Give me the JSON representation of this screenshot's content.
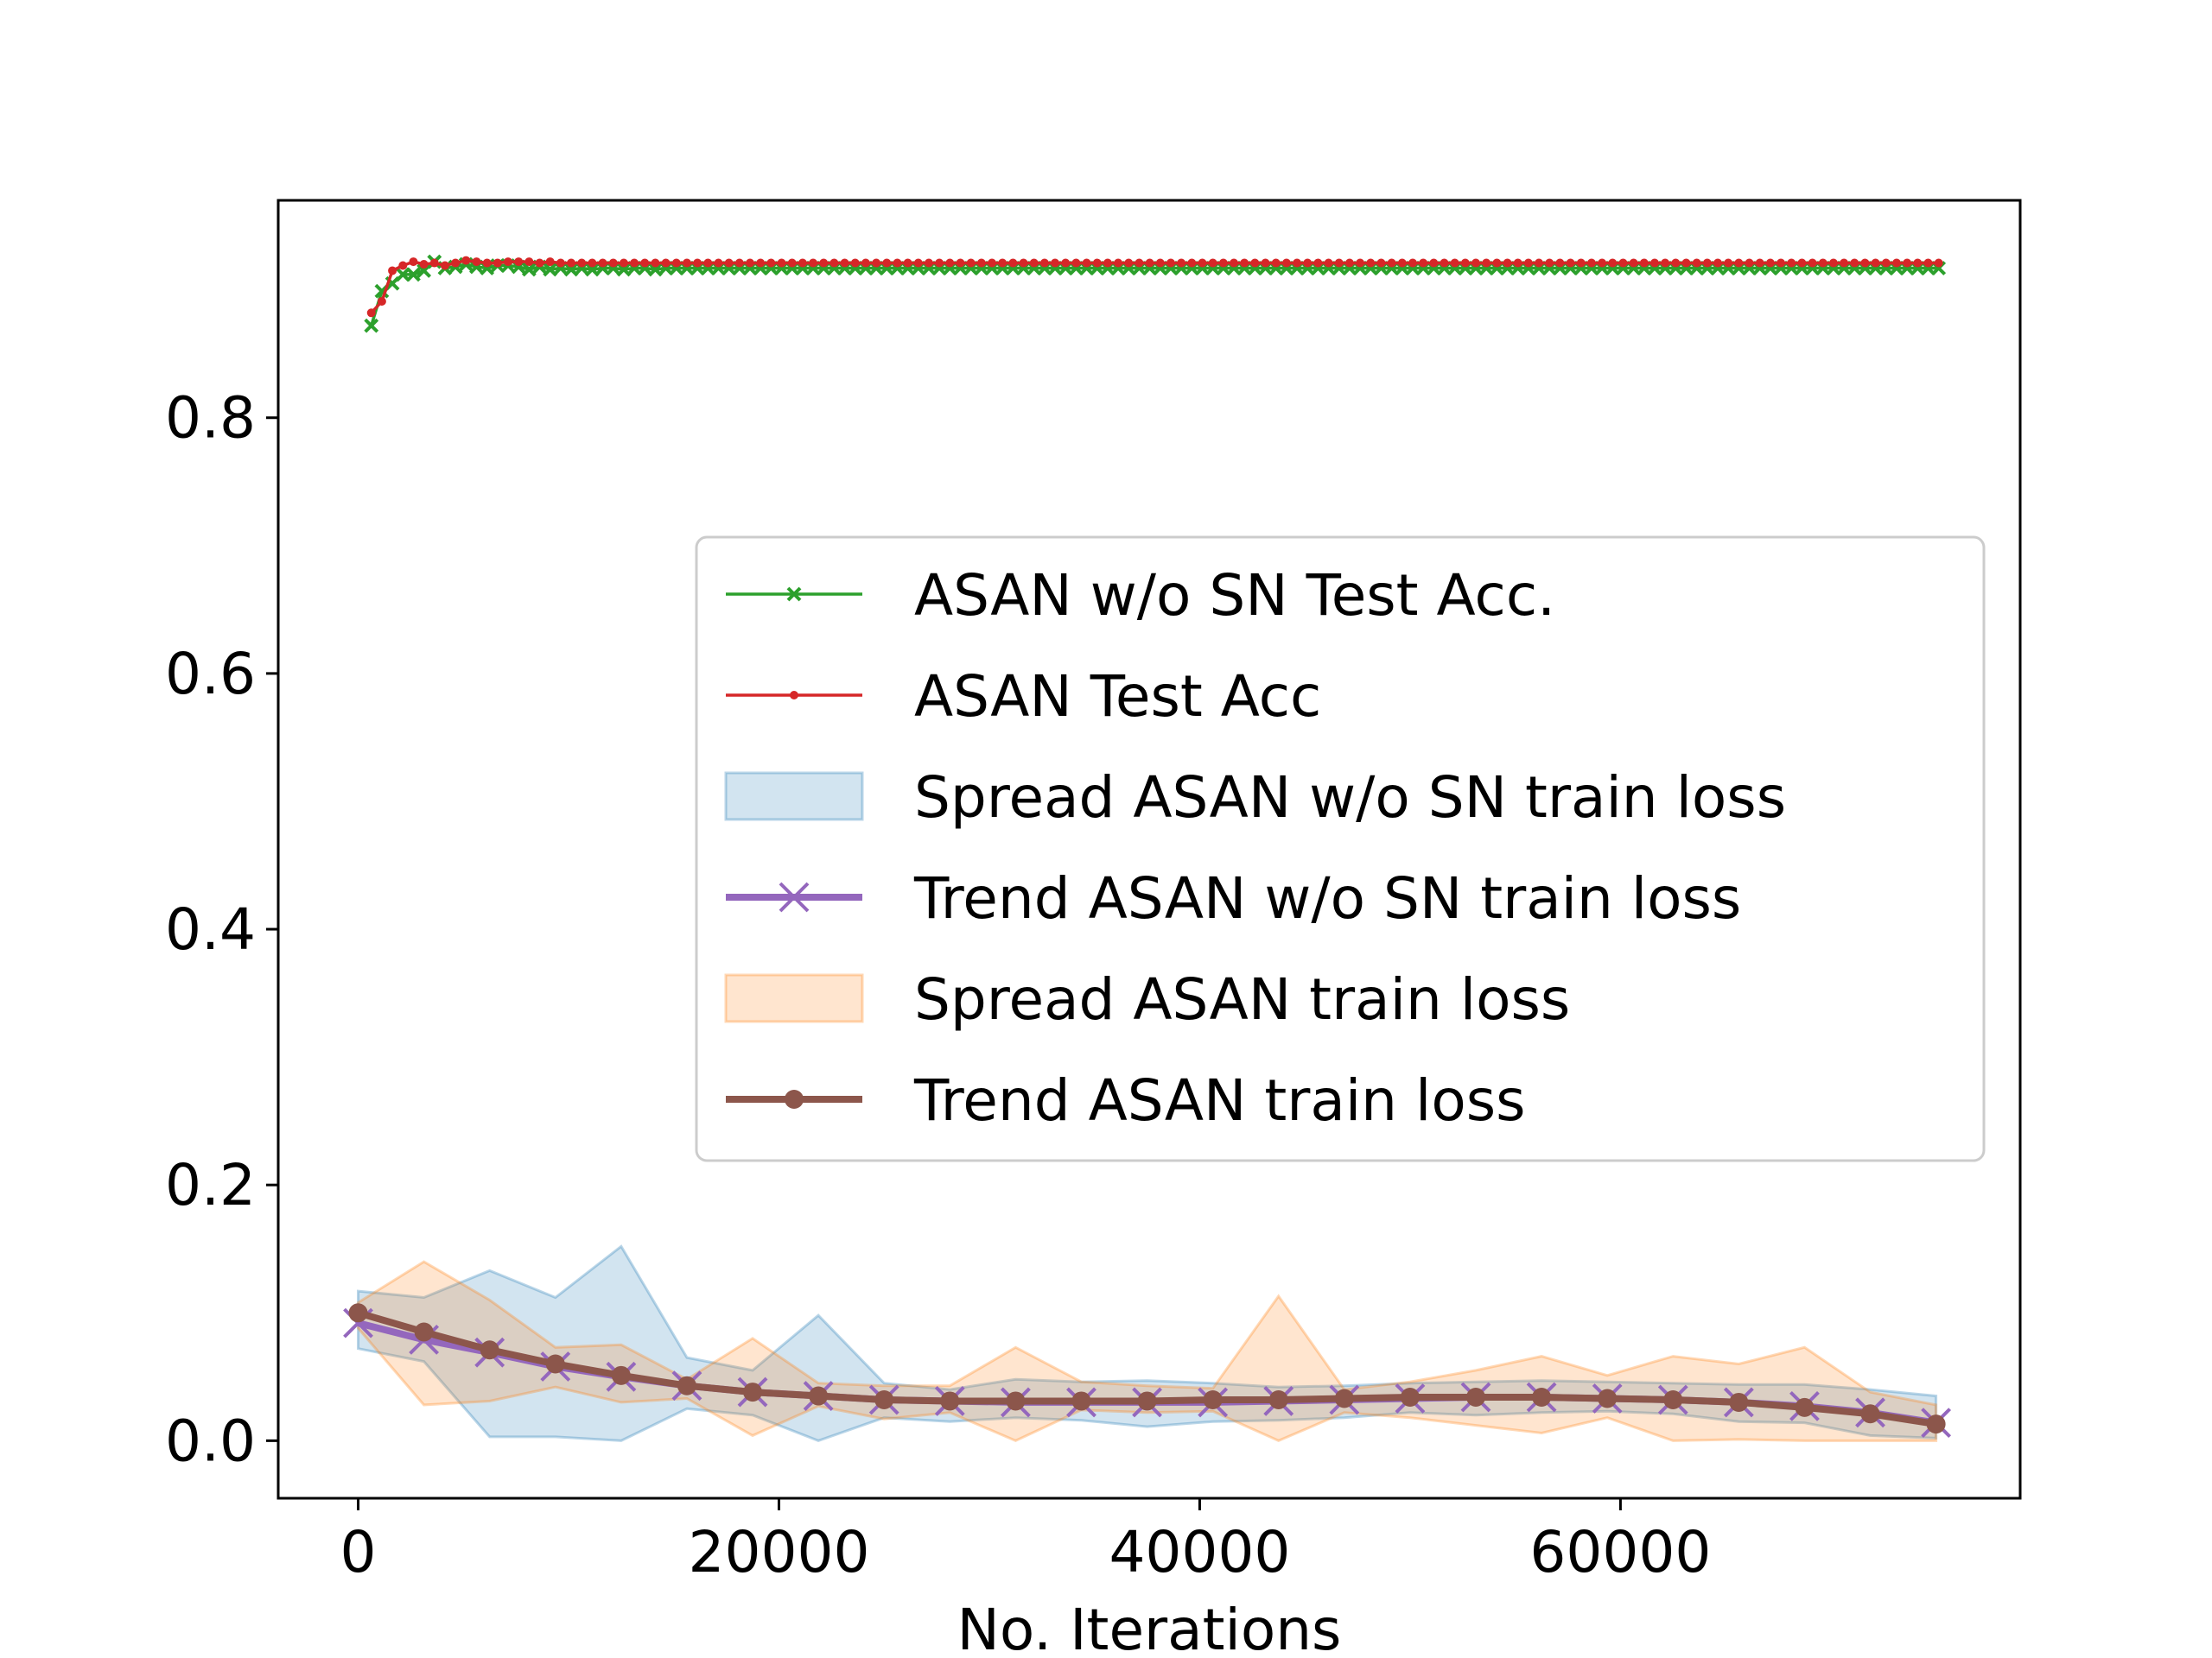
{
  "chart_data": {
    "type": "line",
    "title": "",
    "xlabel": "No. Iterations",
    "ylabel": "",
    "xlim": [
      -3800,
      79000
    ],
    "ylim": [
      -0.045,
      0.97
    ],
    "xticks": [
      0,
      20000,
      40000,
      60000
    ],
    "xtick_labels": [
      "0",
      "20000",
      "40000",
      "60000"
    ],
    "yticks": [
      0.0,
      0.2,
      0.4,
      0.6,
      0.8
    ],
    "ytick_labels": [
      "0.0",
      "0.2",
      "0.4",
      "0.6",
      "0.8"
    ],
    "grid": false,
    "legend_position": "center-right",
    "colors": {
      "green": "#2ca02c",
      "red": "#d62728",
      "blue_fill": "#1f77b4",
      "purple": "#9467bd",
      "orange_fill": "#ff7f0e",
      "brown": "#8c564b"
    },
    "series": [
      {
        "name": "ASAN w/o SN Test Acc.",
        "kind": "line",
        "marker": "x",
        "x": [
          625,
          1125,
          1625,
          2125,
          2625,
          3125,
          3625,
          4125,
          4625,
          5125,
          5625,
          6125,
          6625,
          7125,
          7625,
          8125,
          8625,
          9125,
          9625,
          10125,
          10625,
          11125,
          11625,
          12125,
          12625,
          13125,
          13625,
          14125,
          14625,
          15125,
          15625,
          16125,
          16625,
          17125,
          17625,
          18125,
          18625,
          19125,
          19625,
          20125,
          20625,
          21125,
          21625,
          22125,
          22625,
          23125,
          23625,
          24125,
          24625,
          25125,
          25625,
          26125,
          26625,
          27125,
          27625,
          28125,
          28625,
          29125,
          29625,
          30125,
          30625,
          31125,
          31625,
          32125,
          32625,
          33125,
          33625,
          34125,
          34625,
          35125,
          35625,
          36125,
          36625,
          37125,
          37625,
          38125,
          38625,
          39125,
          39625,
          40125,
          40625,
          41125,
          41625,
          42125,
          42625,
          43125,
          43625,
          44125,
          44625,
          45125,
          45625,
          46125,
          46625,
          47125,
          47625,
          48125,
          48625,
          49125,
          49625,
          50125,
          50625,
          51125,
          51625,
          52125,
          52625,
          53125,
          53625,
          54125,
          54625,
          55125,
          55625,
          56125,
          56625,
          57125,
          57625,
          58125,
          58625,
          59125,
          59625,
          60125,
          60625,
          61125,
          61625,
          62125,
          62625,
          63125,
          63625,
          64125,
          64625,
          65125,
          65625,
          66125,
          66625,
          67125,
          67625,
          68125,
          68625,
          69125,
          69625,
          70125,
          70625,
          71125,
          71625,
          72125,
          72625,
          73125,
          73625,
          74125,
          74625,
          75125
        ],
        "y": [
          0.872,
          0.899,
          0.905,
          0.912,
          0.912,
          0.915,
          0.922,
          0.917,
          0.918,
          0.92,
          0.918,
          0.917,
          0.919,
          0.919,
          0.918,
          0.916,
          0.918,
          0.916,
          0.917,
          0.916,
          0.917,
          0.916,
          0.917,
          0.917,
          0.916,
          0.917,
          0.917,
          0.916,
          0.917,
          0.917,
          0.917,
          0.917,
          0.917,
          0.917,
          0.917,
          0.917,
          0.917,
          0.917,
          0.917,
          0.917,
          0.917,
          0.917,
          0.917,
          0.917,
          0.917,
          0.917,
          0.917,
          0.917,
          0.917,
          0.917,
          0.917,
          0.917,
          0.917,
          0.917,
          0.917,
          0.917,
          0.917,
          0.917,
          0.917,
          0.917,
          0.917,
          0.917,
          0.917,
          0.917,
          0.917,
          0.917,
          0.917,
          0.917,
          0.917,
          0.917,
          0.917,
          0.917,
          0.917,
          0.917,
          0.917,
          0.917,
          0.917,
          0.917,
          0.917,
          0.917,
          0.917,
          0.917,
          0.917,
          0.917,
          0.917,
          0.917,
          0.917,
          0.917,
          0.917,
          0.917,
          0.917,
          0.917,
          0.917,
          0.917,
          0.917,
          0.917,
          0.917,
          0.917,
          0.917,
          0.917,
          0.917,
          0.917,
          0.917,
          0.917,
          0.917,
          0.917,
          0.917,
          0.917,
          0.917,
          0.917,
          0.917,
          0.917,
          0.917,
          0.917,
          0.917,
          0.917,
          0.917,
          0.917,
          0.917,
          0.917,
          0.917,
          0.917,
          0.917,
          0.917,
          0.917,
          0.917,
          0.917,
          0.917,
          0.917,
          0.917,
          0.917,
          0.917,
          0.917,
          0.917,
          0.917,
          0.917,
          0.917,
          0.917,
          0.917,
          0.917,
          0.917,
          0.917,
          0.917,
          0.917,
          0.917,
          0.917,
          0.917,
          0.917,
          0.917,
          0.917
        ]
      },
      {
        "name": "ASAN Test Acc",
        "kind": "line",
        "marker": "dot",
        "x": [
          625,
          1125,
          1625,
          2125,
          2625,
          3125,
          3625,
          4125,
          4625,
          5125,
          5625,
          6125,
          6625,
          7125,
          7625,
          8125,
          8625,
          9125,
          9625,
          10125,
          10625,
          11125,
          11625,
          12125,
          12625,
          13125,
          13625,
          14125,
          14625,
          15125,
          15625,
          16125,
          16625,
          17125,
          17625,
          18125,
          18625,
          19125,
          19625,
          20125,
          20625,
          21125,
          21625,
          22125,
          22625,
          23125,
          23625,
          24125,
          24625,
          25125,
          25625,
          26125,
          26625,
          27125,
          27625,
          28125,
          28625,
          29125,
          29625,
          30125,
          30625,
          31125,
          31625,
          32125,
          32625,
          33125,
          33625,
          34125,
          34625,
          35125,
          35625,
          36125,
          36625,
          37125,
          37625,
          38125,
          38625,
          39125,
          39625,
          40125,
          40625,
          41125,
          41625,
          42125,
          42625,
          43125,
          43625,
          44125,
          44625,
          45125,
          45625,
          46125,
          46625,
          47125,
          47625,
          48125,
          48625,
          49125,
          49625,
          50125,
          50625,
          51125,
          51625,
          52125,
          52625,
          53125,
          53625,
          54125,
          54625,
          55125,
          55625,
          56125,
          56625,
          57125,
          57625,
          58125,
          58625,
          59125,
          59625,
          60125,
          60625,
          61125,
          61625,
          62125,
          62625,
          63125,
          63625,
          64125,
          64625,
          65125,
          65625,
          66125,
          66625,
          67125,
          67625,
          68125,
          68625,
          69125,
          69625,
          70125,
          70625,
          71125,
          71625,
          72125,
          72625,
          73125,
          73625,
          74125,
          74625,
          75125
        ],
        "y": [
          0.882,
          0.891,
          0.915,
          0.919,
          0.922,
          0.92,
          0.921,
          0.919,
          0.921,
          0.923,
          0.922,
          0.921,
          0.921,
          0.922,
          0.922,
          0.922,
          0.921,
          0.922,
          0.921,
          0.921,
          0.921,
          0.921,
          0.921,
          0.921,
          0.921,
          0.921,
          0.921,
          0.921,
          0.921,
          0.921,
          0.921,
          0.921,
          0.921,
          0.921,
          0.921,
          0.921,
          0.921,
          0.921,
          0.921,
          0.921,
          0.921,
          0.921,
          0.921,
          0.921,
          0.921,
          0.921,
          0.921,
          0.921,
          0.921,
          0.921,
          0.921,
          0.921,
          0.921,
          0.921,
          0.921,
          0.921,
          0.921,
          0.921,
          0.921,
          0.921,
          0.921,
          0.921,
          0.921,
          0.921,
          0.921,
          0.921,
          0.921,
          0.921,
          0.921,
          0.921,
          0.921,
          0.921,
          0.921,
          0.921,
          0.921,
          0.921,
          0.921,
          0.921,
          0.921,
          0.921,
          0.921,
          0.921,
          0.921,
          0.921,
          0.921,
          0.921,
          0.921,
          0.921,
          0.921,
          0.921,
          0.921,
          0.921,
          0.921,
          0.921,
          0.921,
          0.921,
          0.921,
          0.921,
          0.921,
          0.921,
          0.921,
          0.921,
          0.921,
          0.921,
          0.921,
          0.921,
          0.921,
          0.921,
          0.921,
          0.921,
          0.921,
          0.921,
          0.921,
          0.921,
          0.921,
          0.921,
          0.921,
          0.921,
          0.921,
          0.921,
          0.921,
          0.921,
          0.921,
          0.921,
          0.921,
          0.921,
          0.921,
          0.921,
          0.921,
          0.921,
          0.921,
          0.921,
          0.921,
          0.921,
          0.921,
          0.921,
          0.921,
          0.921,
          0.921,
          0.921,
          0.921,
          0.921,
          0.921,
          0.921,
          0.921,
          0.921,
          0.921,
          0.921,
          0.921,
          0.921
        ]
      },
      {
        "name": "Spread ASAN w/o SN train loss",
        "kind": "band",
        "x": [
          0,
          3125,
          6250,
          9375,
          12500,
          15625,
          18750,
          21875,
          25000,
          28125,
          31250,
          34375,
          37500,
          40625,
          43750,
          46875,
          50000,
          53125,
          56250,
          59375,
          62500,
          65625,
          68750,
          71875,
          75000
        ],
        "upper": [
          0.117,
          0.112,
          0.133,
          0.112,
          0.152,
          0.065,
          0.055,
          0.098,
          0.045,
          0.04,
          0.048,
          0.046,
          0.047,
          0.045,
          0.042,
          0.043,
          0.045,
          0.046,
          0.047,
          0.046,
          0.045,
          0.044,
          0.044,
          0.04,
          0.035
        ],
        "lower": [
          0.072,
          0.062,
          0.003,
          0.003,
          0.0,
          0.025,
          0.02,
          0.0,
          0.018,
          0.015,
          0.018,
          0.016,
          0.011,
          0.015,
          0.016,
          0.018,
          0.022,
          0.02,
          0.022,
          0.023,
          0.021,
          0.015,
          0.014,
          0.004,
          0.002
        ]
      },
      {
        "name": "Trend ASAN w/o SN train loss",
        "kind": "line",
        "marker": "x",
        "x": [
          0,
          3125,
          6250,
          9375,
          12500,
          15625,
          18750,
          21875,
          25000,
          28125,
          31250,
          34375,
          37500,
          40625,
          43750,
          46875,
          50000,
          53125,
          56250,
          59375,
          62500,
          65625,
          68750,
          71875,
          75000
        ],
        "y": [
          0.092,
          0.079,
          0.069,
          0.058,
          0.05,
          0.043,
          0.038,
          0.035,
          0.032,
          0.031,
          0.03,
          0.03,
          0.03,
          0.03,
          0.031,
          0.032,
          0.033,
          0.034,
          0.034,
          0.033,
          0.032,
          0.03,
          0.027,
          0.022,
          0.014
        ]
      },
      {
        "name": "Spread ASAN train loss",
        "kind": "band",
        "x": [
          0,
          3125,
          6250,
          9375,
          12500,
          15625,
          18750,
          21875,
          25000,
          28125,
          31250,
          34375,
          37500,
          40625,
          43750,
          46875,
          50000,
          53125,
          56250,
          59375,
          62500,
          65625,
          68750,
          71875,
          75000
        ],
        "upper": [
          0.108,
          0.14,
          0.11,
          0.073,
          0.075,
          0.048,
          0.08,
          0.045,
          0.043,
          0.043,
          0.073,
          0.046,
          0.043,
          0.041,
          0.113,
          0.04,
          0.046,
          0.055,
          0.066,
          0.051,
          0.066,
          0.06,
          0.073,
          0.038,
          0.028
        ],
        "lower": [
          0.088,
          0.028,
          0.031,
          0.042,
          0.03,
          0.033,
          0.004,
          0.027,
          0.017,
          0.022,
          0.0,
          0.024,
          0.022,
          0.023,
          0.0,
          0.022,
          0.018,
          0.012,
          0.006,
          0.018,
          0.0,
          0.001,
          0.0,
          0.0,
          0.0
        ]
      },
      {
        "name": "Trend ASAN train loss",
        "kind": "line",
        "marker": "dot",
        "x": [
          0,
          3125,
          6250,
          9375,
          12500,
          15625,
          18750,
          21875,
          25000,
          28125,
          31250,
          34375,
          37500,
          40625,
          43750,
          46875,
          50000,
          53125,
          56250,
          59375,
          62500,
          65625,
          68750,
          71875,
          75000
        ],
        "y": [
          0.1,
          0.085,
          0.071,
          0.06,
          0.051,
          0.043,
          0.038,
          0.035,
          0.032,
          0.031,
          0.031,
          0.031,
          0.031,
          0.032,
          0.032,
          0.033,
          0.034,
          0.034,
          0.034,
          0.033,
          0.032,
          0.03,
          0.026,
          0.021,
          0.013
        ]
      }
    ]
  }
}
